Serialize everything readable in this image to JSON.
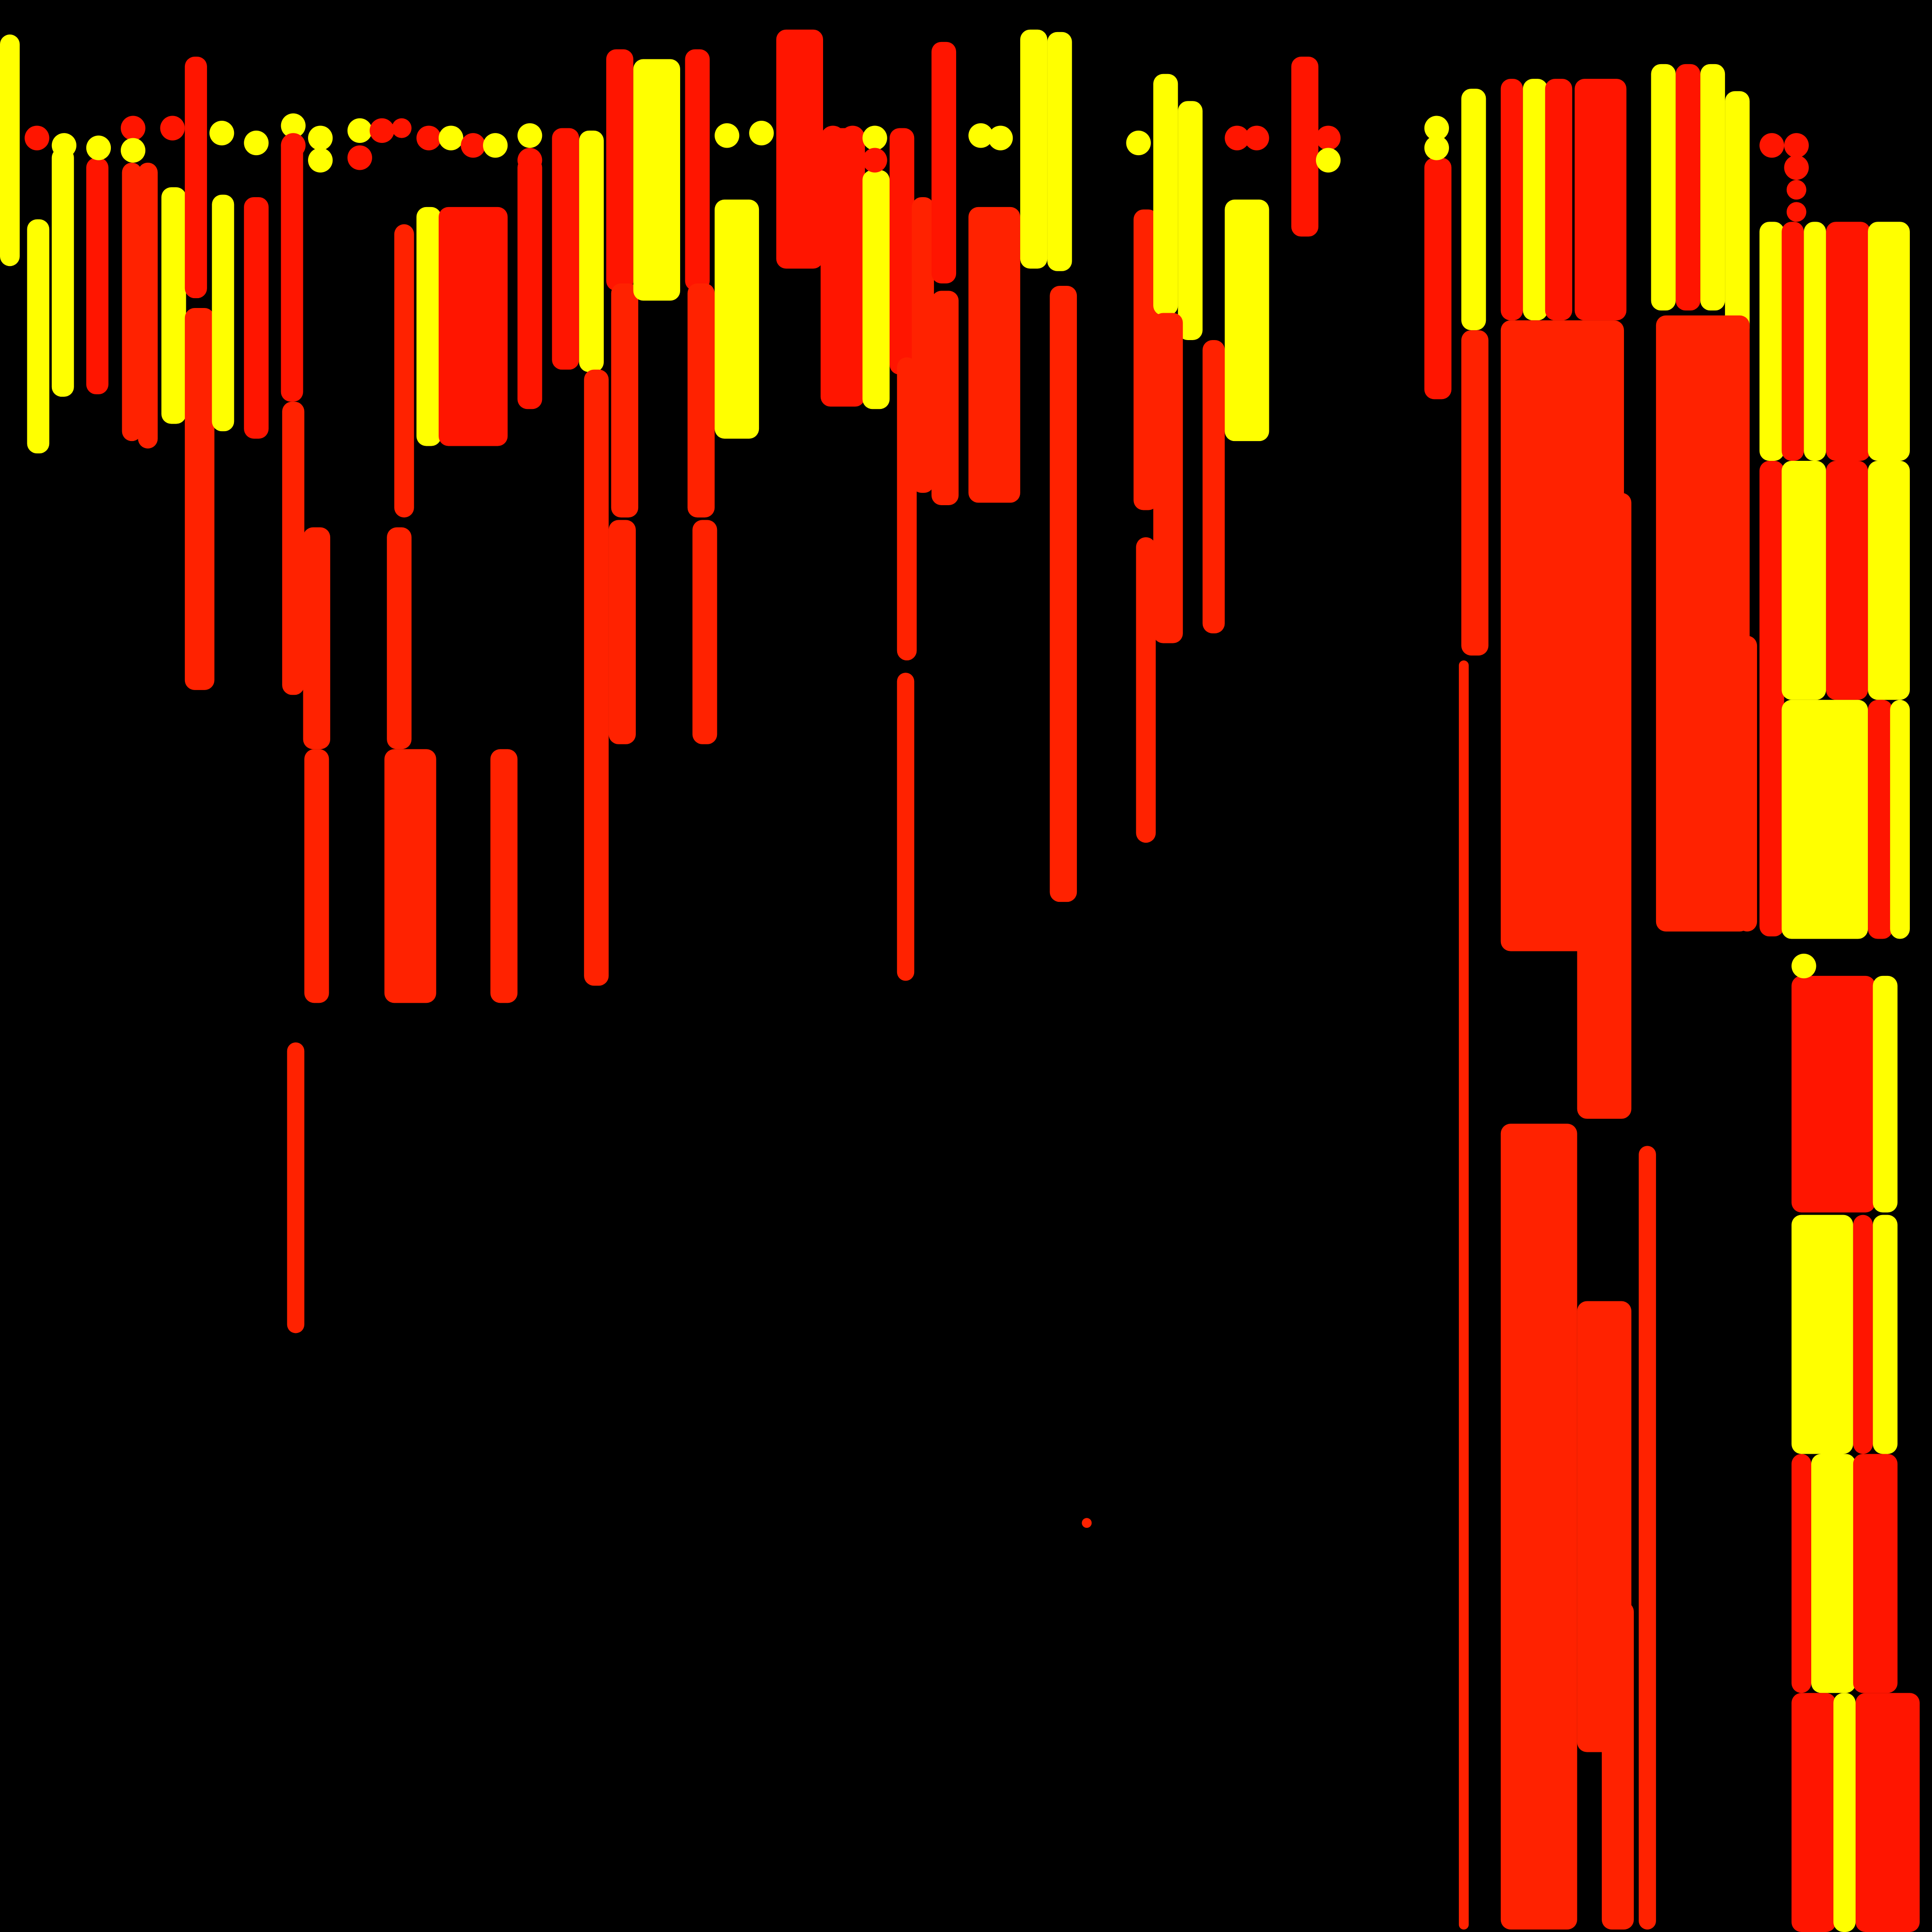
{
  "palette": {
    "background": "#000000",
    "yellow": "#FFFF00",
    "red": "#FF1500",
    "orange_red": "#FF2200"
  }
}
